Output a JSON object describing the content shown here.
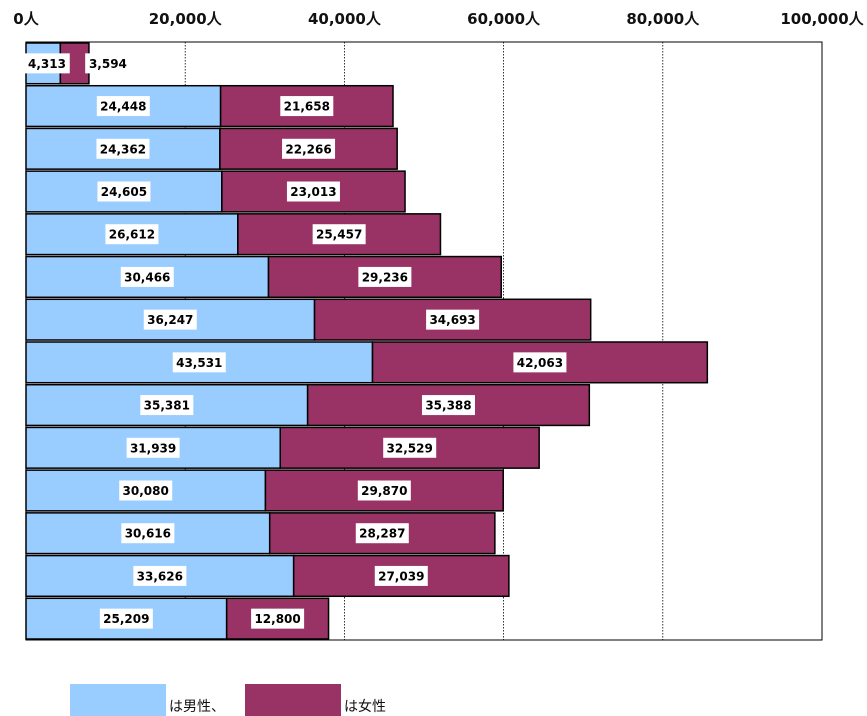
{
  "chart_data": {
    "type": "bar",
    "orientation": "horizontal-stacked",
    "x_ticks": [
      "0人",
      "20,000人",
      "40,000人",
      "60,000人",
      "80,000人",
      "100,000人"
    ],
    "xlim": [
      0,
      100000
    ],
    "grid": true,
    "series": [
      {
        "name": "は男性、",
        "color": "#99ccff",
        "values": [
          4313,
          24448,
          24362,
          24605,
          26612,
          30466,
          36247,
          43531,
          35381,
          31939,
          30080,
          30616,
          33626,
          25209
        ],
        "labels": [
          "4,313",
          "24,448",
          "24,362",
          "24,605",
          "26,612",
          "30,466",
          "36,247",
          "43,531",
          "35,381",
          "31,939",
          "30,080",
          "30,616",
          "33,626",
          "25,209"
        ]
      },
      {
        "name": "は女性",
        "color": "#993366",
        "values": [
          3594,
          21658,
          22266,
          23013,
          25457,
          29236,
          34693,
          42063,
          35388,
          32529,
          29870,
          28287,
          27039,
          12800
        ],
        "labels": [
          "3,594",
          "21,658",
          "22,266",
          "23,013",
          "25,457",
          "29,236",
          "34,693",
          "42,063",
          "35,388",
          "32,529",
          "29,870",
          "28,287",
          "27,039",
          "12,800"
        ]
      }
    ],
    "legend_position": "bottom-left"
  },
  "legend": {
    "male_label": "は男性、",
    "female_label": "は女性"
  }
}
